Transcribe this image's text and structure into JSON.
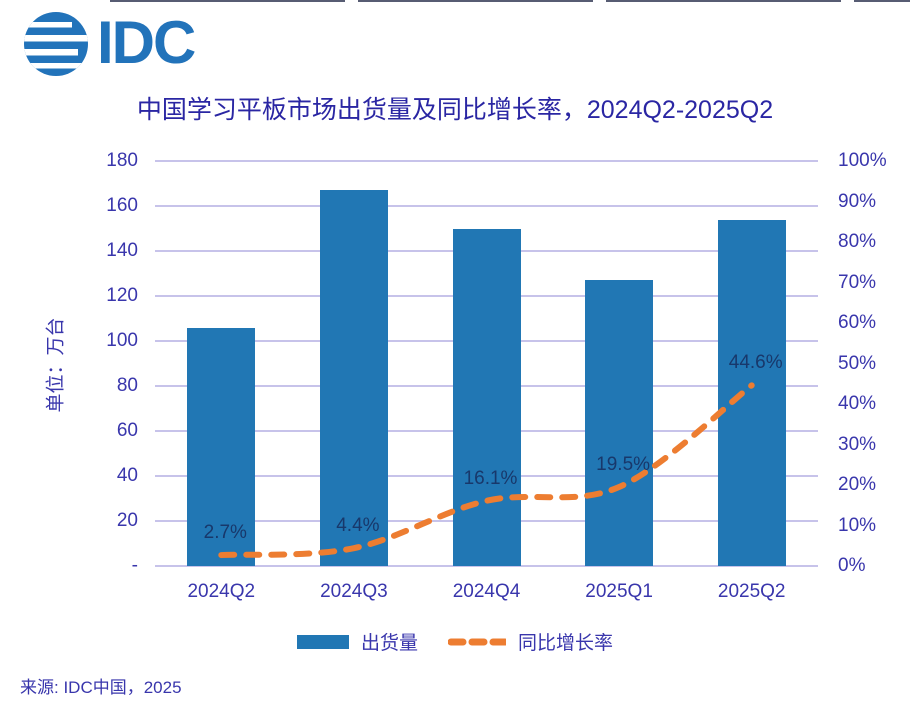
{
  "page": {
    "logo_text": "IDC",
    "source": "来源: IDC中国，2025"
  },
  "colors": {
    "bar": "#2177B4",
    "line": "#ED7D31",
    "gridline": "#C7C3EA",
    "axis_text": "#3936AC",
    "title_text": "#2A26A3",
    "data_label": "#18386B",
    "logo": "#2273BA"
  },
  "chart_data": {
    "type": "bar",
    "subtype": "combo bar + dashed line, dual axis",
    "title": "中国学习平板市场出货量及同比增长率，2024Q2-2025Q2",
    "categories": [
      "2024Q2",
      "2024Q3",
      "2024Q4",
      "2025Q1",
      "2025Q2"
    ],
    "series": [
      {
        "name": "出货量",
        "type": "bar",
        "axis": "left",
        "unit": "万台",
        "values": [
          106,
          167,
          150,
          127,
          154
        ]
      },
      {
        "name": "同比增长率",
        "type": "line",
        "style": "dashed",
        "axis": "right",
        "unit": "%",
        "values": [
          2.7,
          4.4,
          16.1,
          19.5,
          44.6
        ],
        "point_labels": [
          "2.7%",
          "4.4%",
          "16.1%",
          "19.5%",
          "44.6%"
        ]
      }
    ],
    "left_axis": {
      "title": "单位：万台",
      "min": 0,
      "max": 180,
      "step": 20,
      "tick_labels_top_to_bottom": [
        "180",
        "160",
        "140",
        "120",
        "100",
        "80",
        "60",
        "40",
        "20",
        "-"
      ]
    },
    "right_axis": {
      "min": 0,
      "max": 100,
      "step": 10,
      "tick_labels_top_to_bottom": [
        "100%",
        "90%",
        "80%",
        "70%",
        "60%",
        "50%",
        "40%",
        "30%",
        "20%",
        "10%",
        "0%"
      ]
    },
    "legend": [
      {
        "label": "出货量",
        "swatch": "bar"
      },
      {
        "label": "同比增长率",
        "swatch": "dashed-line"
      }
    ],
    "grid": "horizontal gridlines every 20 units, legend bottom-center"
  }
}
